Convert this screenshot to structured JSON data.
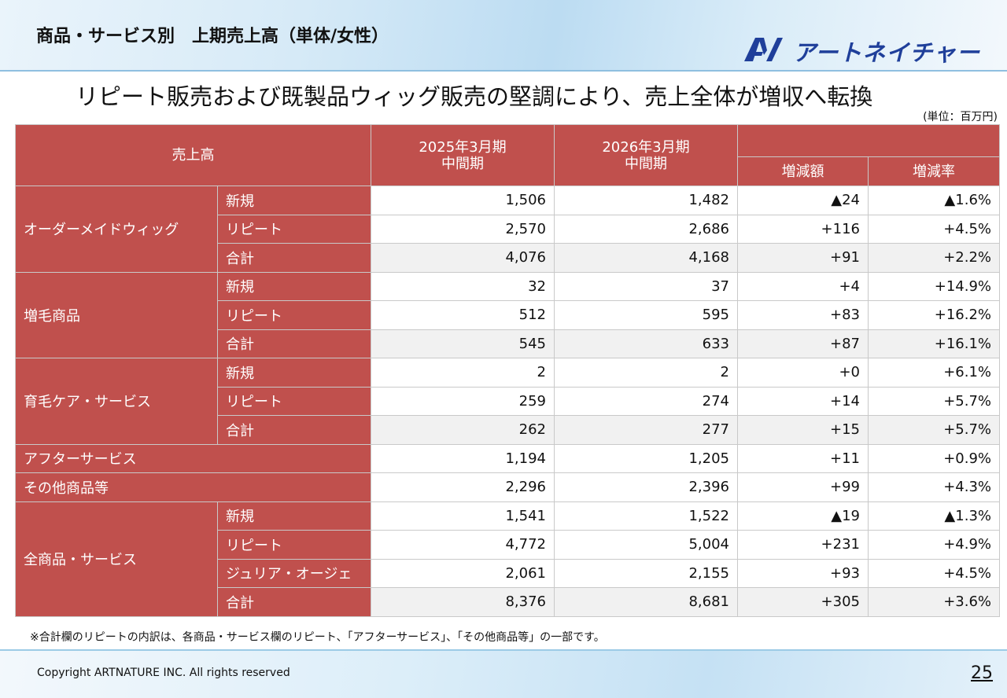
{
  "header": {
    "title": "商品・サービス別　上期売上高（単体/女性）",
    "logo_text": "アートネイチャー"
  },
  "subtitle": "リピート販売および既製品ウィッグ販売の堅調により、売上全体が増収へ転換",
  "unit": "(単位：百万円)",
  "table": {
    "col_sales": "売上高",
    "col_2025": "2025年3月期 中間期",
    "col_2026": "2026年3月期 中間期",
    "col_diff": "増減額",
    "col_rate": "増減率",
    "rows": [
      {
        "cat": "オーダーメイドウィッグ",
        "sub": "新規",
        "v2025": "1,506",
        "v2026": "1,482",
        "diff": "▲24",
        "rate": "▲1.6%"
      },
      {
        "sub": "リピート",
        "v2025": "2,570",
        "v2026": "2,686",
        "diff": "+116",
        "rate": "+4.5%"
      },
      {
        "sub": "合計",
        "v2025": "4,076",
        "v2026": "4,168",
        "diff": "+91",
        "rate": "+2.2%"
      },
      {
        "cat": "増毛商品",
        "sub": "新規",
        "v2025": "32",
        "v2026": "37",
        "diff": "+4",
        "rate": "+14.9%"
      },
      {
        "sub": "リピート",
        "v2025": "512",
        "v2026": "595",
        "diff": "+83",
        "rate": "+16.2%"
      },
      {
        "sub": "合計",
        "v2025": "545",
        "v2026": "633",
        "diff": "+87",
        "rate": "+16.1%"
      },
      {
        "cat": "育毛ケア・サービス",
        "sub": "新規",
        "v2025": "2",
        "v2026": "2",
        "diff": "+0",
        "rate": "+6.1%"
      },
      {
        "sub": "リピート",
        "v2025": "259",
        "v2026": "274",
        "diff": "+14",
        "rate": "+5.7%"
      },
      {
        "sub": "合計",
        "v2025": "262",
        "v2026": "277",
        "diff": "+15",
        "rate": "+5.7%"
      },
      {
        "cat": "アフターサービス",
        "v2025": "1,194",
        "v2026": "1,205",
        "diff": "+11",
        "rate": "+0.9%"
      },
      {
        "cat": "その他商品等",
        "v2025": "2,296",
        "v2026": "2,396",
        "diff": "+99",
        "rate": "+4.3%"
      },
      {
        "cat": "全商品・サービス",
        "sub": "新規",
        "v2025": "1,541",
        "v2026": "1,522",
        "diff": "▲19",
        "rate": "▲1.3%"
      },
      {
        "sub": "リピート",
        "v2025": "4,772",
        "v2026": "5,004",
        "diff": "+231",
        "rate": "+4.9%"
      },
      {
        "sub": "ジュリア・オージェ",
        "v2025": "2,061",
        "v2026": "2,155",
        "diff": "+93",
        "rate": "+4.5%"
      },
      {
        "sub": "合計",
        "v2025": "8,376",
        "v2026": "8,681",
        "diff": "+305",
        "rate": "+3.6%"
      }
    ]
  },
  "footnote": "※合計欄のリピートの内訳は、各商品・サービス欄のリピート、「アフターサービス」、「その他商品等」の一部です。",
  "footer": {
    "copyright": "Copyright ARTNATURE INC. All rights reserved",
    "page": "25"
  },
  "colors": {
    "header_red": "#c0504d",
    "logo_blue": "#1f3f9a"
  }
}
